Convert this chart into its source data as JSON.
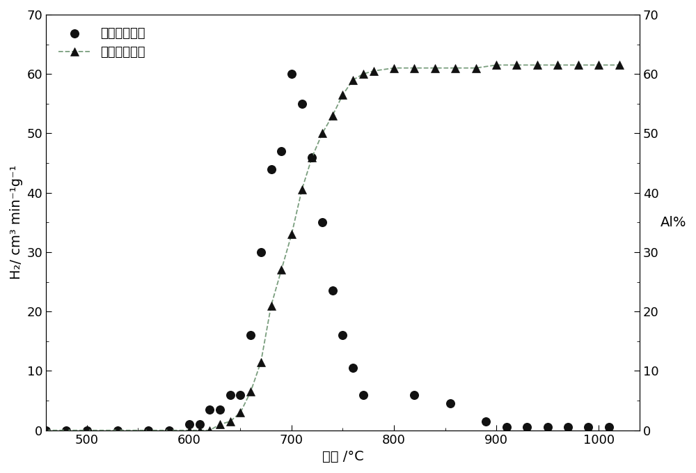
{
  "h2_rate_x": [
    460,
    480,
    500,
    530,
    560,
    580,
    600,
    610,
    620,
    630,
    640,
    650,
    660,
    670,
    680,
    690,
    700,
    710,
    720,
    730,
    740,
    750,
    760,
    770,
    820,
    855,
    890,
    910,
    930,
    950,
    970,
    990,
    1010
  ],
  "h2_rate_y": [
    0,
    0,
    0,
    0,
    0,
    0,
    1,
    1,
    3.5,
    3.5,
    6,
    6,
    16,
    30,
    44,
    47,
    60,
    55,
    46,
    35,
    23.5,
    16,
    10.5,
    6,
    6,
    4.5,
    1.5,
    0.5,
    0.5,
    0.5,
    0.5,
    0.5,
    0.5
  ],
  "al_rate_x": [
    460,
    480,
    500,
    530,
    560,
    580,
    600,
    610,
    620,
    630,
    640,
    650,
    660,
    670,
    680,
    690,
    700,
    710,
    720,
    730,
    740,
    750,
    760,
    770,
    780,
    800,
    820,
    840,
    860,
    880,
    900,
    920,
    940,
    960,
    980,
    1000,
    1020
  ],
  "al_rate_y": [
    0,
    0,
    0,
    0,
    0,
    0,
    0,
    0,
    0,
    1,
    1.5,
    3,
    6.5,
    11.5,
    21,
    27,
    33,
    40.5,
    46,
    50,
    53,
    56.5,
    59,
    60,
    60.5,
    61,
    61,
    61,
    61,
    61,
    61.5,
    61.5,
    61.5,
    61.5,
    61.5,
    61.5,
    61.5
  ],
  "xlabel": "温度 /°C",
  "ylabel_left": "H₂/ cm³ min⁻¹g⁻¹",
  "ylabel_right": "Al%",
  "ylim_left": [
    0,
    70
  ],
  "ylim_right": [
    0,
    70
  ],
  "xlim": [
    460,
    1040
  ],
  "xticks": [
    500,
    600,
    700,
    800,
    900,
    1000
  ],
  "yticks_left": [
    0,
    10,
    20,
    30,
    40,
    50,
    60,
    70
  ],
  "yticks_right": [
    0,
    10,
    20,
    30,
    40,
    50,
    60,
    70
  ],
  "legend_label_h2": "氢气生成速率",
  "legend_label_al": "金属铝反应率",
  "dot_color": "#111111",
  "triangle_color": "#111111",
  "line_color": "#7a9e7e",
  "bg_color": "#ffffff",
  "marker_dot_size": 70,
  "marker_triangle_size": 8,
  "tick_fontsize": 13,
  "label_fontsize": 14,
  "legend_fontsize": 13
}
